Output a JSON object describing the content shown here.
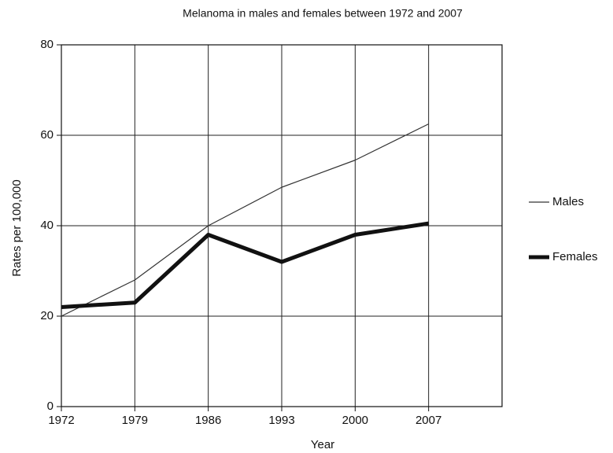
{
  "chart_data": {
    "type": "line",
    "title": "Melanoma in males and females between 1972 and 2007",
    "x_label": "Year",
    "y_label": "Rates per 100,000",
    "x": [
      1972,
      1979,
      1986,
      1993,
      2000,
      2007
    ],
    "series": [
      {
        "name": "Males",
        "color": "#333333",
        "values": [
          20,
          28,
          40,
          48.5,
          54.5,
          62.5
        ]
      },
      {
        "name": "Females",
        "color": "#111111",
        "values": [
          22,
          23,
          38,
          32,
          38,
          40.5
        ]
      }
    ],
    "xlim": [
      1972,
      2014
    ],
    "xticks": [
      1972,
      1979,
      1986,
      1993,
      2000,
      2007
    ],
    "ylim": [
      0,
      80
    ],
    "yticks": [
      0,
      20,
      40,
      60,
      80
    ],
    "grid": true,
    "legend": "right"
  }
}
